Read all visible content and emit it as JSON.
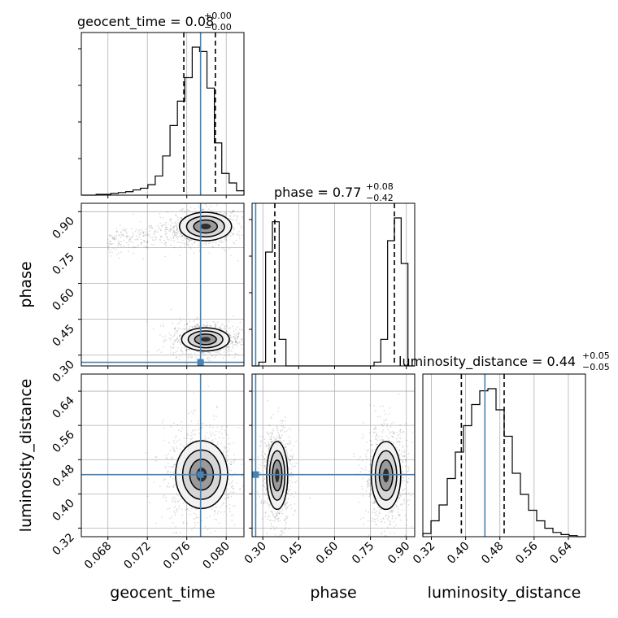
{
  "chart_data": {
    "type": "corner",
    "parameters": [
      "geocent_time",
      "phase",
      "luminosity_distance"
    ],
    "titles": {
      "geocent_time": {
        "text": "geocent_time = 0.08",
        "plus": "+0.00",
        "minus": "−0.00"
      },
      "phase": {
        "text": "phase = 0.77",
        "plus": "+0.08",
        "minus": "−0.42"
      },
      "luminosity_distance": {
        "text": "luminosity_distance = 0.44",
        "plus": "+0.05",
        "minus": "−0.05"
      }
    },
    "truths": {
      "geocent_time": 0.0774,
      "phase": 0.27,
      "luminosity_distance": 0.445
    },
    "truth_color": "#4682b4",
    "ranges": {
      "geocent_time": [
        0.0653,
        0.0818
      ],
      "phase": [
        0.255,
        0.935
      ],
      "luminosity_distance": [
        0.3,
        0.68
      ]
    },
    "ticks": {
      "geocent_time": {
        "values": [
          0.068,
          0.072,
          0.076,
          0.08
        ],
        "labels": [
          "0.068",
          "0.072",
          "0.076",
          "0.080"
        ]
      },
      "phase": {
        "values": [
          0.3,
          0.45,
          0.6,
          0.75,
          0.9
        ],
        "labels": [
          "0.30",
          "0.45",
          "0.60",
          "0.75",
          "0.90"
        ]
      },
      "luminosity_distance": {
        "values": [
          0.32,
          0.4,
          0.48,
          0.56,
          0.64
        ],
        "labels": [
          "0.32",
          "0.40",
          "0.48",
          "0.56",
          "0.64"
        ]
      }
    },
    "quantiles": {
      "geocent_time": [
        0.0757,
        0.0774,
        0.0789
      ],
      "phase": [
        0.35,
        0.77,
        0.85
      ],
      "luminosity_distance": [
        0.39,
        0.44,
        0.49
      ]
    },
    "histograms": {
      "geocent_time": {
        "edges_range": [
          0.0653,
          0.0818
        ],
        "counts": [
          0,
          0,
          1,
          1,
          2,
          3,
          4,
          6,
          8,
          12,
          22,
          45,
          80,
          108,
          135,
          170,
          165,
          123,
          60,
          25,
          14,
          5
        ]
      },
      "phase": {
        "edges_range": [
          0.255,
          0.935
        ],
        "counts": [
          0,
          5,
          150,
          190,
          35,
          0,
          0,
          0,
          0,
          0,
          0,
          0,
          0,
          0,
          0,
          0,
          0,
          0,
          5,
          35,
          165,
          195,
          135,
          0
        ]
      },
      "luminosity_distance": {
        "edges_range": [
          0.3,
          0.68
        ],
        "counts": [
          3,
          15,
          30,
          55,
          80,
          105,
          125,
          138,
          140,
          120,
          95,
          60,
          40,
          25,
          15,
          8,
          4,
          2,
          1,
          0
        ]
      }
    },
    "blobs": {
      "geocent_time_phase": [
        {
          "cx": 0.0779,
          "cy": 0.838,
          "sx": 0.0012,
          "sy": 0.027
        },
        {
          "cx": 0.0779,
          "cy": 0.366,
          "sx": 0.0011,
          "sy": 0.022
        }
      ],
      "geocent_time_luminosity_distance": [
        {
          "cx": 0.0775,
          "cy": 0.445,
          "sx": 0.0012,
          "sy": 0.036
        }
      ],
      "phase_luminosity_distance": [
        {
          "cx": 0.36,
          "cy": 0.443,
          "sx": 0.02,
          "sy": 0.036
        },
        {
          "cx": 0.815,
          "cy": 0.443,
          "sx": 0.028,
          "sy": 0.036
        }
      ]
    }
  }
}
